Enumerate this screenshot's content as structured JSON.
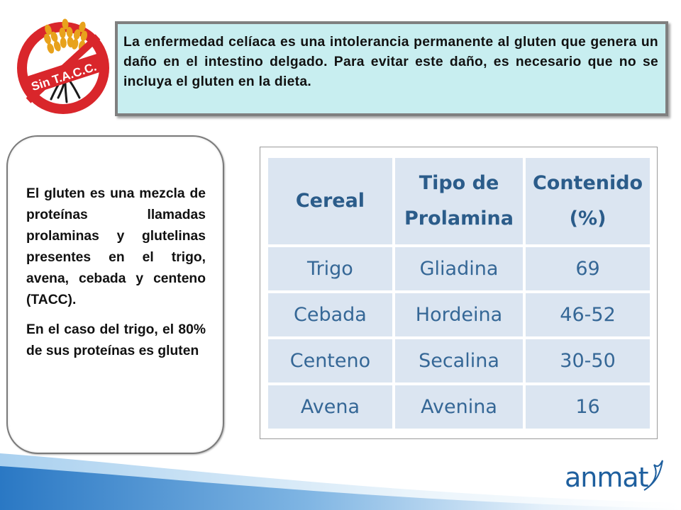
{
  "logo": {
    "text": "Sin T.A.C.C.",
    "colors": {
      "ring": "#d9262b",
      "wheat": "#e8a21c",
      "badge": "#d9262b"
    }
  },
  "intro": {
    "text": "La enfermedad celíaca es una intolerancia permanente al gluten que genera un daño en el intestino delgado. Para evitar este daño, es necesario que no se incluya el gluten en la dieta."
  },
  "side_box": {
    "paragraph_1": "El gluten es una mezcla de proteínas llamadas prolaminas y glutelinas presentes en el trigo, avena, cebada y centeno (TACC).",
    "paragraph_2": "En el caso del trigo, el 80% de sus proteínas es gluten"
  },
  "table": {
    "headers": [
      "Cereal",
      "Tipo de Prolamina",
      "Contenido (%)"
    ],
    "rows": [
      [
        "Trigo",
        "Gliadina",
        "69"
      ],
      [
        "Cebada",
        "Hordeina",
        "46-52"
      ],
      [
        "Centeno",
        "Secalina",
        "30-50"
      ],
      [
        "Avena",
        "Avenina",
        "16"
      ]
    ]
  },
  "footer": {
    "brand": "anmat",
    "brand_color": "#1e5f9e"
  }
}
